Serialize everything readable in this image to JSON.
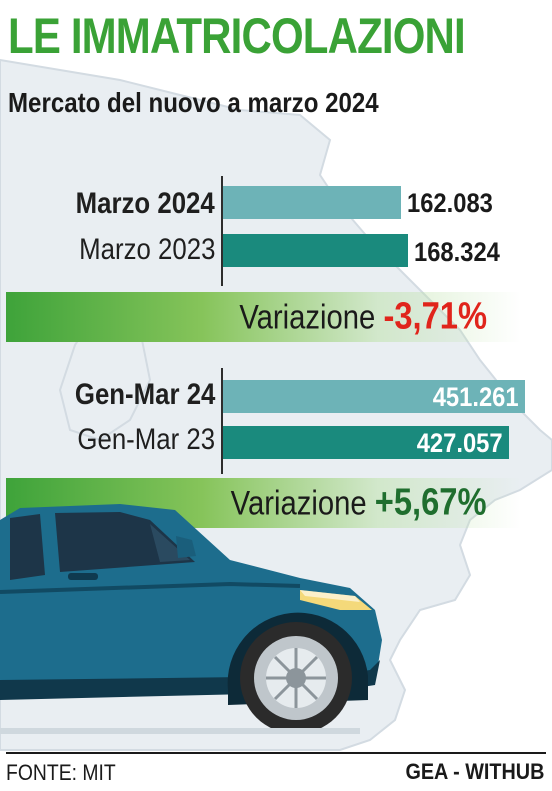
{
  "header": {
    "title": "LE IMMATRICOLAZIONI",
    "subtitle": "Mercato del nuovo a marzo 2024"
  },
  "colors": {
    "title_green": "#3aa236",
    "bar_light": "#6db3b7",
    "bar_dark": "#1a8a7d",
    "negative_red": "#e0241b",
    "positive_green": "#1f6e2e",
    "car_blue": "#1d6d8d"
  },
  "chart_data": [
    {
      "type": "bar",
      "orientation": "horizontal",
      "categories": [
        "Marzo 2024",
        "Marzo 2023"
      ],
      "values": [
        162083,
        168324
      ],
      "value_labels": [
        "162.083",
        "168.324"
      ],
      "xlim": [
        0,
        200000
      ],
      "variation": {
        "label": "Variazione",
        "value": "-3,71%"
      }
    },
    {
      "type": "bar",
      "orientation": "horizontal",
      "categories": [
        "Gen-Mar 24",
        "Gen-Mar 23"
      ],
      "values": [
        451261,
        427057
      ],
      "value_labels": [
        "451.261",
        "427.057"
      ],
      "xlim": [
        0,
        490000
      ],
      "variation": {
        "label": "Variazione",
        "value": "+5,67%"
      }
    }
  ],
  "footer": {
    "source": "FONTE: MIT",
    "credit": "GEA - WITHUB"
  }
}
